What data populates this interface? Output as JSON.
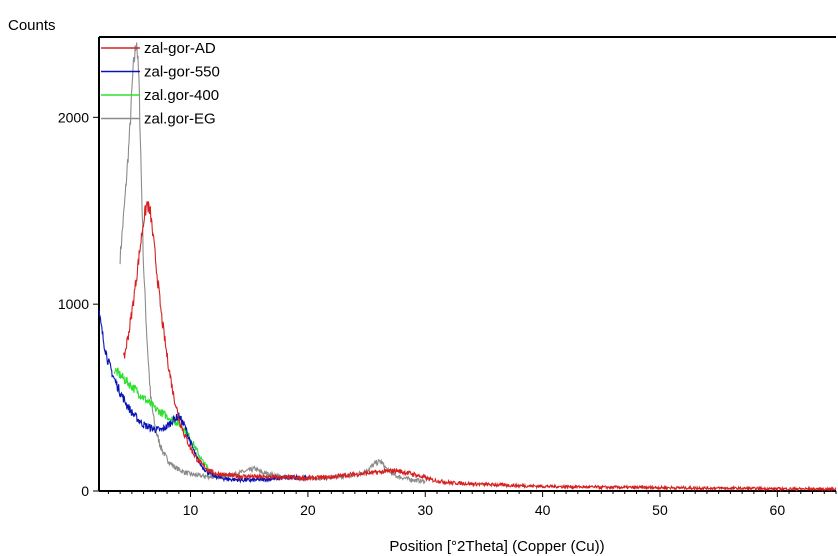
{
  "chart_data": {
    "type": "line",
    "ylabel": "Counts",
    "xlabel": "Position [°2Theta] (Copper (Cu))",
    "xlim": [
      2.2,
      65
    ],
    "ylim": [
      0,
      2430
    ],
    "x_ticks": [
      10,
      20,
      30,
      40,
      50,
      60
    ],
    "x_tick_labels": [
      "10",
      "20",
      "30",
      "40",
      "50",
      "60"
    ],
    "y_ticks": [
      0,
      1000,
      2000
    ],
    "y_tick_labels": [
      "0",
      "1000",
      "2000"
    ],
    "legend_position": "top-left",
    "grid": false,
    "series": [
      {
        "name": "zal-gor-AD",
        "color": "#d62020",
        "x": [
          4.3,
          4.8,
          5.2,
          5.6,
          6.0,
          6.3,
          6.6,
          7.0,
          7.5,
          8.0,
          8.5,
          9.0,
          9.5,
          10.0,
          10.5,
          11.0,
          11.5,
          12.0,
          13.0,
          14.0,
          15.0,
          16.0,
          18.0,
          20.0,
          22.0,
          24.0,
          26.0,
          27.5,
          29.0,
          30.5,
          32.0,
          35.0,
          40.0,
          45.0,
          50.0,
          55.0,
          60.0,
          65.0
        ],
        "values": [
          700,
          870,
          1050,
          1250,
          1450,
          1540,
          1480,
          1250,
          950,
          720,
          530,
          390,
          300,
          230,
          175,
          140,
          115,
          95,
          85,
          80,
          78,
          75,
          72,
          68,
          75,
          90,
          100,
          110,
          90,
          60,
          45,
          35,
          25,
          20,
          18,
          15,
          12,
          10
        ]
      },
      {
        "name": "zal-gor-550",
        "color": "#0a14b4",
        "x": [
          2.2,
          2.6,
          3.0,
          3.5,
          4.0,
          4.5,
          5.0,
          5.5,
          6.0,
          6.5,
          7.0,
          7.5,
          8.0,
          8.5,
          9.0,
          9.5,
          10.0,
          10.5,
          11.0,
          11.5,
          12.0,
          13.0,
          14.0,
          15.0,
          16.0,
          17.0,
          18.0,
          19.0,
          20.0
        ],
        "values": [
          950,
          800,
          690,
          600,
          530,
          470,
          420,
          385,
          355,
          340,
          330,
          325,
          345,
          380,
          400,
          350,
          260,
          180,
          130,
          100,
          80,
          65,
          60,
          58,
          60,
          65,
          70,
          72,
          70
        ]
      },
      {
        "name": "zal.gor-400",
        "color": "#2ee02e",
        "x": [
          3.5,
          4.0,
          4.5,
          5.0,
          5.5,
          6.0,
          6.5,
          7.0,
          7.5,
          8.0,
          8.5,
          9.0,
          9.5,
          10.0,
          10.5,
          11.0,
          11.5,
          12.0
        ],
        "values": [
          650,
          620,
          590,
          560,
          530,
          500,
          470,
          440,
          420,
          400,
          380,
          360,
          330,
          280,
          220,
          160,
          120,
          95
        ]
      },
      {
        "name": "zal.gor-EG",
        "color": "#8c8c8c",
        "x": [
          4.0,
          4.4,
          4.8,
          5.1,
          5.4,
          5.6,
          5.8,
          6.0,
          6.3,
          6.6,
          7.0,
          7.5,
          8.0,
          8.5,
          9.0,
          9.5,
          10.0,
          11.0,
          12.0,
          13.0,
          14.0,
          15.0,
          15.5,
          16.0,
          17.0,
          18.0,
          19.0,
          20.0,
          22.0,
          24.0,
          25.0,
          25.8,
          26.2,
          26.8,
          27.5,
          28.5,
          29.5,
          30.0
        ],
        "values": [
          1250,
          1550,
          1900,
          2250,
          2420,
          2200,
          1700,
          1200,
          800,
          500,
          330,
          230,
          170,
          135,
          115,
          100,
          90,
          80,
          75,
          80,
          95,
          110,
          120,
          100,
          85,
          75,
          70,
          68,
          72,
          85,
          110,
          150,
          160,
          110,
          80,
          65,
          55,
          50
        ]
      }
    ]
  }
}
